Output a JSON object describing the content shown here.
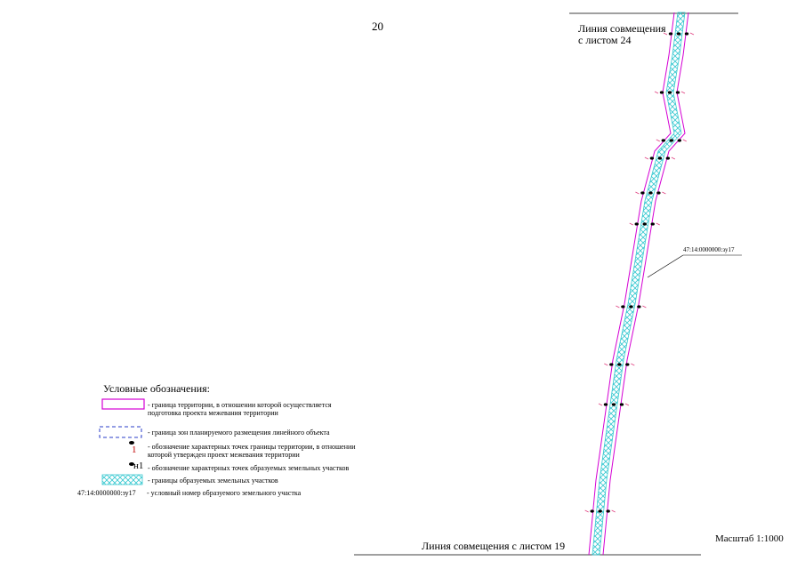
{
  "sheet": {
    "page_number": "20",
    "match_line_top": "Линия совмещения\nс листом 24",
    "match_line_bottom": "Линия совмещения с листом 19",
    "scale": "Масштаб 1:1000"
  },
  "map": {
    "parcel_callout": "47:14:0000000:зу17",
    "colors": {
      "territory_boundary": "#d400d4",
      "zone_boundary": "#2a3cc8",
      "parcel_hatch": "#37c8d0",
      "point_marker": "#000000",
      "point_accent": "#e04080"
    }
  },
  "legend": {
    "title": "Условные обозначения:",
    "items": [
      {
        "symbol": "magenta-rectangle",
        "text": "- граница территории, в отношении которой осуществляется\nподготовка проекта межевания территории"
      },
      {
        "symbol": "blue-dashed-rectangle",
        "text": "- граница зон планируемого размещения линейного объекта"
      },
      {
        "symbol": "point-marker-red",
        "marker_label": "1",
        "text": "- обозначение характерных точек границы территории, в отношении\nкоторой утвержден проект межевания территории"
      },
      {
        "symbol": "point-marker-black",
        "marker_label": "н1",
        "text": "- обозначение характерных точек образуемых земельных участков"
      },
      {
        "symbol": "cyan-hatch-rectangle",
        "text": "- границы образуемых земельных участков"
      },
      {
        "symbol": "text-sample",
        "marker_label": "47:14:0000000:зу17",
        "text": "- условный номер образуемого земельного участка"
      }
    ]
  }
}
